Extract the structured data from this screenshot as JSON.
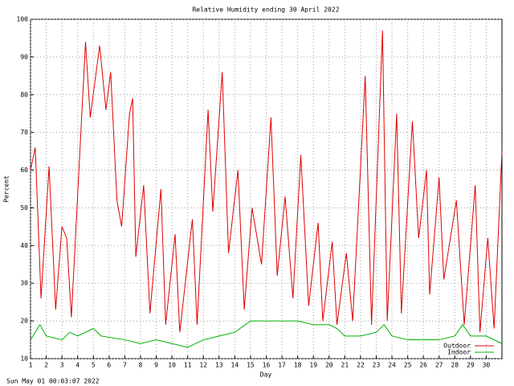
{
  "chart_data": {
    "type": "line",
    "title": "Relative Humidity ending 30 April 2022",
    "x_label": "Day",
    "y_label": "Percent",
    "footer": "Sun May 01 00:03:07 2022",
    "xlim": [
      1,
      31
    ],
    "xticks": [
      1,
      2,
      3,
      4,
      5,
      6,
      7,
      8,
      9,
      10,
      11,
      12,
      13,
      14,
      15,
      16,
      17,
      18,
      19,
      20,
      21,
      22,
      23,
      24,
      25,
      26,
      27,
      28,
      29,
      30
    ],
    "ylim": [
      10,
      100
    ],
    "yticks": [
      10,
      20,
      30,
      40,
      50,
      60,
      70,
      80,
      90,
      100
    ],
    "grid": true,
    "legend": "bottom-right",
    "series": [
      {
        "name": "Outdoor",
        "color": "#e00000",
        "x": [
          1.0,
          1.3,
          1.67,
          2.18,
          2.6,
          3.0,
          3.3,
          3.6,
          4.5,
          4.8,
          5.4,
          5.8,
          6.1,
          6.5,
          6.8,
          7.3,
          7.5,
          7.7,
          8.2,
          8.6,
          9.3,
          9.6,
          10.2,
          10.5,
          11.3,
          11.6,
          12.3,
          12.6,
          13.2,
          13.6,
          14.2,
          14.6,
          15.1,
          15.7,
          16.3,
          16.7,
          17.2,
          17.7,
          18.2,
          18.7,
          19.3,
          19.6,
          20.2,
          20.5,
          21.1,
          21.5,
          22.3,
          22.7,
          23.4,
          23.7,
          24.3,
          24.6,
          25.3,
          25.7,
          26.2,
          26.4,
          27.0,
          27.3,
          28.1,
          28.6,
          29.3,
          29.6,
          30.1,
          30.5,
          31.0
        ],
        "values": [
          60,
          66,
          26,
          61,
          23,
          45,
          42,
          21,
          94,
          74,
          93,
          76,
          86,
          52,
          45,
          75,
          79,
          37,
          56,
          22,
          55,
          19,
          43,
          17,
          47,
          19,
          76,
          49,
          86,
          38,
          60,
          23,
          50,
          35,
          74,
          32,
          53,
          26,
          64,
          24,
          46,
          20,
          41,
          19,
          38,
          20,
          85,
          19,
          97,
          20,
          75,
          22,
          73,
          42,
          60,
          27,
          58,
          31,
          52,
          19,
          56,
          17,
          42,
          18,
          65
        ]
      },
      {
        "name": "Indoor",
        "color": "#00b000",
        "x": [
          1.0,
          1.6,
          2.0,
          3.0,
          3.5,
          4.0,
          5.0,
          5.5,
          7.0,
          8.0,
          9.0,
          10.0,
          11.0,
          12.0,
          13.0,
          14.0,
          15.0,
          16.0,
          17.0,
          18.0,
          19.0,
          20.0,
          20.5,
          21.0,
          22.0,
          23.0,
          23.5,
          24.0,
          25.0,
          26.0,
          27.0,
          28.0,
          28.5,
          29.0,
          30.0,
          31.0
        ],
        "values": [
          15,
          19,
          16,
          15,
          17,
          16,
          18,
          16,
          15,
          14,
          15,
          14,
          13,
          15,
          16,
          17,
          20,
          20,
          20,
          20,
          19,
          19,
          18,
          16,
          16,
          17,
          19,
          16,
          15,
          15,
          15,
          16,
          19,
          16,
          16,
          14
        ]
      }
    ]
  }
}
